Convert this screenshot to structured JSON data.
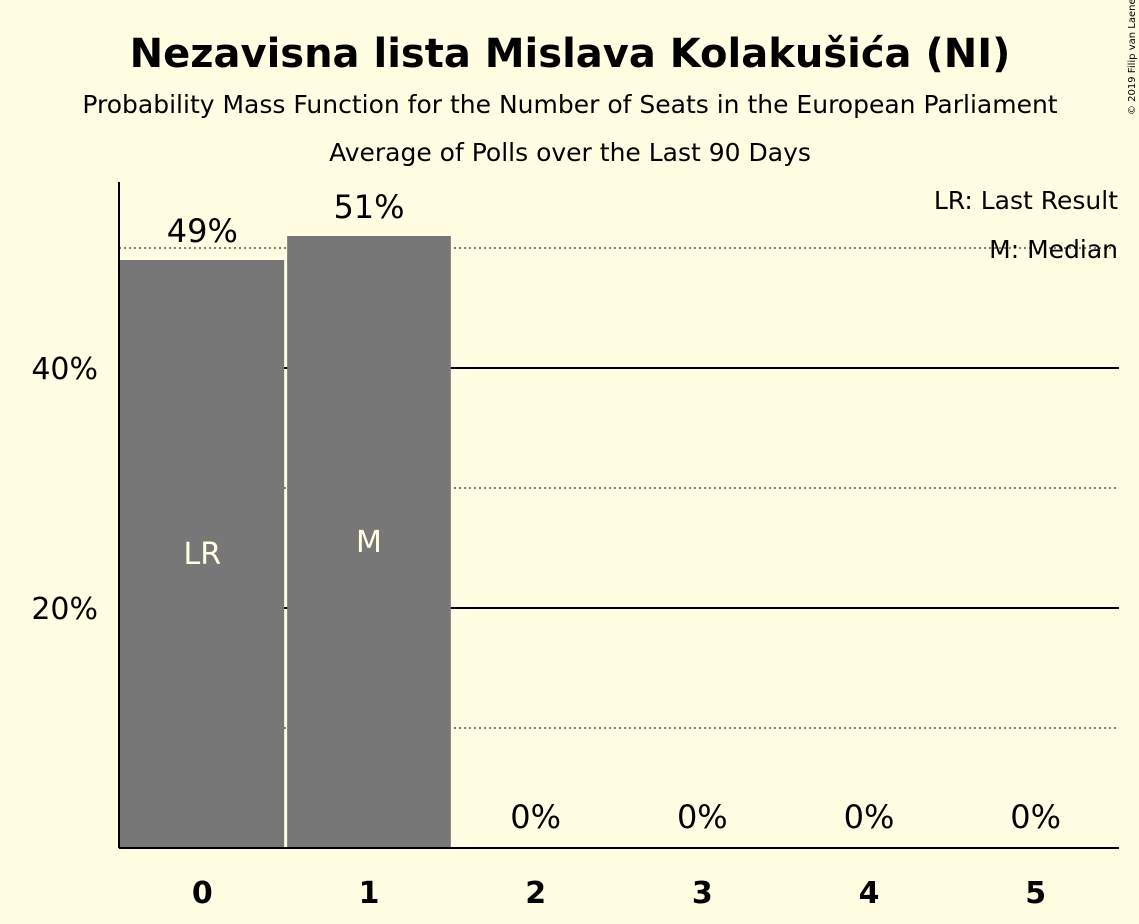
{
  "chart_data": {
    "type": "bar",
    "title": "Nezavisna lista Mislava Kolakušića (NI)",
    "subtitle": "Probability Mass Function for the Number of Seats in the European Parliament",
    "subtitle2": "Average of Polls over the Last 90 Days",
    "copyright": "© 2019 Filip van Laenen",
    "categories": [
      "0",
      "1",
      "2",
      "3",
      "4",
      "5"
    ],
    "values": [
      49,
      51,
      0,
      0,
      0,
      0
    ],
    "value_labels": [
      "49%",
      "51%",
      "0%",
      "0%",
      "0%",
      "0%"
    ],
    "bar_labels": [
      "LR",
      "M",
      "",
      "",
      "",
      ""
    ],
    "yticks": [
      {
        "value": 20,
        "label": "20%"
      },
      {
        "value": 40,
        "label": "40%"
      }
    ],
    "minor_gridlines": [
      10,
      30,
      50
    ],
    "ylim": [
      0,
      55.5
    ],
    "legend": {
      "position": "top-right",
      "items": [
        "LR: Last Result",
        "M: Median"
      ]
    },
    "colors": {
      "bar": "#777777",
      "background": "#FFFEE3",
      "text": "#000000",
      "bar_text": "#FFFEE3"
    }
  }
}
